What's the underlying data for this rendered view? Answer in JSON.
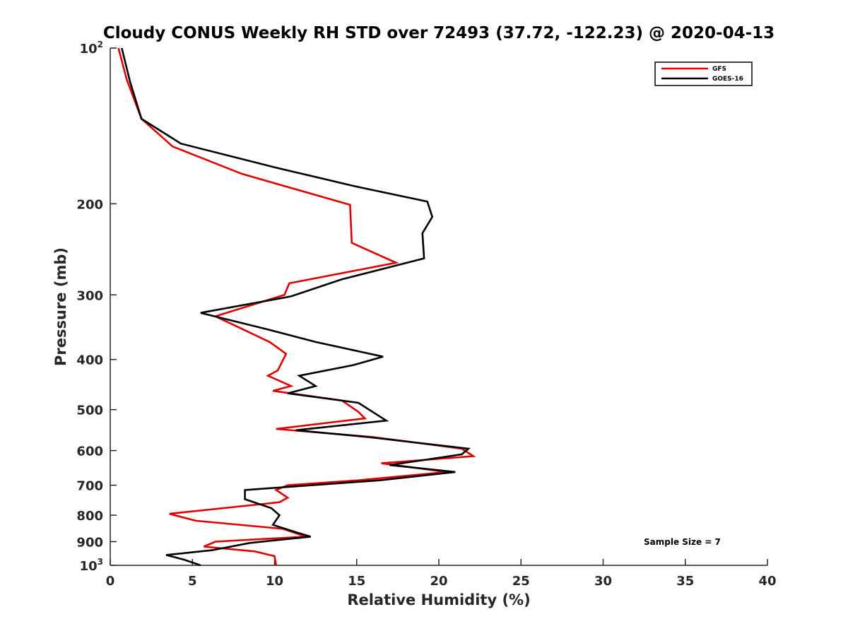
{
  "chart_data": {
    "type": "line",
    "title": "Cloudy CONUS Weekly RH STD over 72493 (37.72, -122.23) @ 2020-04-13",
    "xlabel": "Relative Humidity (%)",
    "ylabel": "Pressure (mb)",
    "xlim": [
      0,
      40
    ],
    "ylim": [
      100,
      1000
    ],
    "y_scale": "log",
    "y_reversed": true,
    "x_ticks": [
      "0",
      "5",
      "10",
      "15",
      "20",
      "25",
      "30",
      "35",
      "40"
    ],
    "y_ticks": [
      {
        "value": 100,
        "base": "10",
        "exp": "2"
      },
      {
        "value": 200,
        "label": "200"
      },
      {
        "value": 300,
        "label": "300"
      },
      {
        "value": 400,
        "label": "400"
      },
      {
        "value": 500,
        "label": "500"
      },
      {
        "value": 600,
        "label": "600"
      },
      {
        "value": 700,
        "label": "700"
      },
      {
        "value": 800,
        "label": "800"
      },
      {
        "value": 900,
        "label": "900"
      },
      {
        "value": 1000,
        "base": "10",
        "exp": "3"
      }
    ],
    "grid": false,
    "legend_position": "top-right",
    "annotation": "Sample Size = 7",
    "series": [
      {
        "name": "GFS",
        "color": "#e00000",
        "points": [
          [
            0.5,
            100
          ],
          [
            1.0,
            115
          ],
          [
            1.9,
            137
          ],
          [
            3.8,
            155
          ],
          [
            8.0,
            175
          ],
          [
            14.6,
            201
          ],
          [
            14.7,
            238
          ],
          [
            17.4,
            260
          ],
          [
            10.9,
            285
          ],
          [
            10.6,
            300
          ],
          [
            6.4,
            330
          ],
          [
            9.7,
            370
          ],
          [
            10.7,
            390
          ],
          [
            10.2,
            420
          ],
          [
            9.6,
            430
          ],
          [
            11.0,
            450
          ],
          [
            9.9,
            460
          ],
          [
            14.1,
            480
          ],
          [
            15.1,
            505
          ],
          [
            15.5,
            520
          ],
          [
            10.1,
            545
          ],
          [
            16.0,
            565
          ],
          [
            21.4,
            595
          ],
          [
            22.1,
            615
          ],
          [
            16.5,
            635
          ],
          [
            20.5,
            660
          ],
          [
            15.1,
            685
          ],
          [
            10.8,
            700
          ],
          [
            10.1,
            715
          ],
          [
            10.8,
            740
          ],
          [
            10.3,
            755
          ],
          [
            3.6,
            795
          ],
          [
            5.2,
            820
          ],
          [
            10.5,
            850
          ],
          [
            11.9,
            880
          ],
          [
            6.4,
            900
          ],
          [
            5.7,
            920
          ],
          [
            8.8,
            940
          ],
          [
            10.0,
            960
          ],
          [
            10.1,
            1000
          ]
        ]
      },
      {
        "name": "GOES-16",
        "color": "#000000",
        "points": [
          [
            0.7,
            100
          ],
          [
            1.2,
            116
          ],
          [
            1.9,
            137
          ],
          [
            4.3,
            153
          ],
          [
            10.0,
            170
          ],
          [
            14.9,
            185
          ],
          [
            19.3,
            198
          ],
          [
            19.6,
            212
          ],
          [
            19.0,
            228
          ],
          [
            19.1,
            255
          ],
          [
            14.1,
            280
          ],
          [
            11.0,
            302
          ],
          [
            5.5,
            325
          ],
          [
            9.6,
            350
          ],
          [
            12.5,
            370
          ],
          [
            16.6,
            395
          ],
          [
            14.8,
            410
          ],
          [
            11.5,
            430
          ],
          [
            12.5,
            450
          ],
          [
            10.8,
            465
          ],
          [
            15.1,
            485
          ],
          [
            16.8,
            525
          ],
          [
            11.3,
            548
          ],
          [
            15.7,
            565
          ],
          [
            21.8,
            595
          ],
          [
            21.4,
            610
          ],
          [
            17.0,
            640
          ],
          [
            21.0,
            660
          ],
          [
            16.4,
            685
          ],
          [
            8.2,
            715
          ],
          [
            8.2,
            745
          ],
          [
            9.8,
            775
          ],
          [
            10.3,
            800
          ],
          [
            9.9,
            835
          ],
          [
            11.4,
            865
          ],
          [
            12.2,
            880
          ],
          [
            8.5,
            905
          ],
          [
            6.2,
            935
          ],
          [
            3.4,
            955
          ],
          [
            4.5,
            975
          ],
          [
            5.5,
            1000
          ]
        ]
      }
    ]
  }
}
